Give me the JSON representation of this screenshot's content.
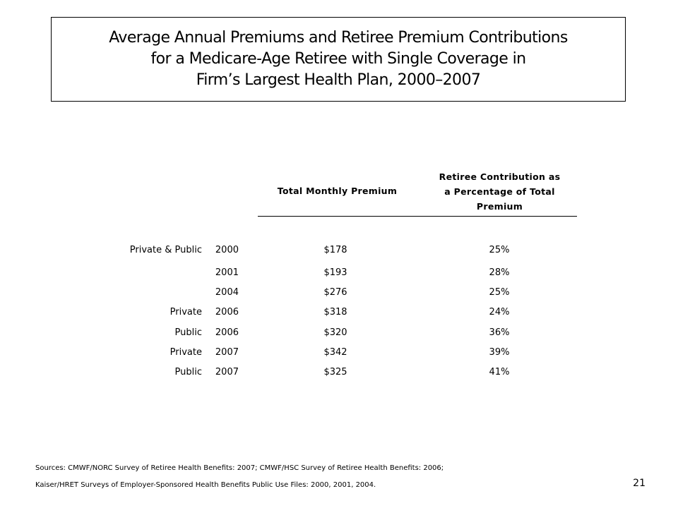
{
  "title": {
    "lines": [
      "Average Annual Premiums and Retiree Premium Contributions",
      "for a Medicare-Age Retiree with Single Coverage in",
      "Firm’s Largest Health Plan, 2000–2007"
    ]
  },
  "table": {
    "columns": {
      "premium": "Total Monthly Premium",
      "contribution": [
        "Retiree Contribution as",
        "a Percentage of Total",
        "Premium"
      ]
    },
    "rows": [
      {
        "sector": "Private & Public",
        "year": "2000",
        "premium": "$178",
        "contribution": "25%"
      },
      {
        "sector": "",
        "year": "2001",
        "premium": "$193",
        "contribution": "28%"
      },
      {
        "sector": "",
        "year": "2004",
        "premium": "$276",
        "contribution": "25%"
      },
      {
        "sector": "Private",
        "year": "2006",
        "premium": "$318",
        "contribution": "24%"
      },
      {
        "sector": "Public",
        "year": "2006",
        "premium": "$320",
        "contribution": "36%"
      },
      {
        "sector": "Private",
        "year": "2007",
        "premium": "$342",
        "contribution": "39%"
      },
      {
        "sector": "Public",
        "year": "2007",
        "premium": "$325",
        "contribution": "41%"
      }
    ]
  },
  "sources": [
    "Sources: CMWF/NORC Survey of Retiree Health Benefits: 2007; CMWF/HSC Survey of Retiree Health Benefits: 2006;",
    "Kaiser/HRET Surveys of Employer-Sponsored Health Benefits Public Use Files: 2000, 2001, 2004."
  ],
  "page_number": "21"
}
